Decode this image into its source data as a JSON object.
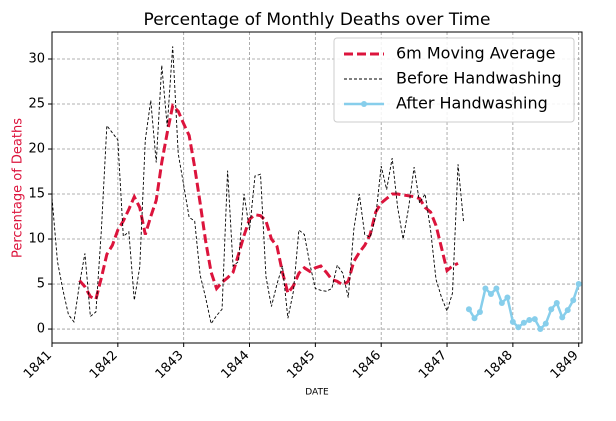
{
  "chart_data": {
    "type": "line",
    "title": "Percentage of Monthly Deaths over Time",
    "xlabel": "DATE",
    "ylabel": "Percentage of Deaths",
    "xlim": [
      1841,
      1849.05
    ],
    "ylim": [
      -1.55,
      33
    ],
    "xticks": [
      1841,
      1842,
      1843,
      1844,
      1845,
      1846,
      1847,
      1848,
      1849
    ],
    "yticks": [
      0,
      5,
      10,
      15,
      20,
      25,
      30
    ],
    "grid": true,
    "legend": "upper right",
    "series": [
      {
        "name": "6m Moving Average",
        "color": "#dc143c",
        "style": "dashed",
        "x": [
          1841,
          1841.083,
          1841.167,
          1841.25,
          1841.333,
          1841.417,
          1841.5,
          1841.583,
          1841.667,
          1841.75,
          1841.833,
          1841.917,
          1842,
          1842.083,
          1842.167,
          1842.25,
          1842.333,
          1842.417,
          1842.5,
          1842.583,
          1842.667,
          1842.75,
          1842.833,
          1842.917,
          1843,
          1843.083,
          1843.167,
          1843.25,
          1843.333,
          1843.417,
          1843.5,
          1843.583,
          1843.667,
          1843.75,
          1843.833,
          1843.917,
          1844,
          1844.083,
          1844.167,
          1844.25,
          1844.333,
          1844.417,
          1844.5,
          1844.583,
          1844.667,
          1844.75,
          1844.833,
          1844.917,
          1845,
          1845.083,
          1845.167,
          1845.25,
          1845.333,
          1845.417,
          1845.5,
          1845.583,
          1845.667,
          1845.75,
          1845.833,
          1845.917,
          1846,
          1846.083,
          1846.167,
          1846.25,
          1846.333,
          1846.417,
          1846.5,
          1846.583,
          1846.667,
          1846.75,
          1846.833,
          1846.917,
          1847,
          1847.083,
          1847.167,
          1847.25
        ],
        "values": [
          null,
          null,
          null,
          null,
          null,
          5.4,
          4.7,
          3.6,
          3.3,
          5.7,
          8.3,
          9.3,
          11,
          12,
          13.3,
          14.7,
          13.5,
          10.5,
          12.5,
          14.3,
          18.5,
          21.8,
          24.8,
          24.2,
          22.8,
          21.5,
          18,
          14,
          9.8,
          6.3,
          4.5,
          5.2,
          5.7,
          6.3,
          8.3,
          10.4,
          12.2,
          12.7,
          12.6,
          12,
          10,
          9.2,
          6.3,
          4,
          4.8,
          6.2,
          6.8,
          6.4,
          6.8,
          7,
          6.3,
          5.5,
          5.3,
          4.9,
          5.3,
          7.5,
          8.5,
          9.3,
          10.5,
          13,
          14,
          14.5,
          15,
          15,
          14.9,
          14.8,
          14.7,
          14.5,
          13.5,
          13,
          11.5,
          9,
          6.5,
          7,
          7.3,
          null
        ]
      },
      {
        "name": "Before Handwashing",
        "color": "#000000",
        "style": "dashed-thin",
        "x": [
          1841,
          1841.083,
          1841.167,
          1841.25,
          1841.333,
          1841.417,
          1841.5,
          1841.583,
          1841.667,
          1841.75,
          1841.833,
          1841.917,
          1842,
          1842.083,
          1842.167,
          1842.25,
          1842.333,
          1842.417,
          1842.5,
          1842.583,
          1842.667,
          1842.75,
          1842.833,
          1842.917,
          1843,
          1843.083,
          1843.167,
          1843.25,
          1843.333,
          1843.417,
          1843.5,
          1843.583,
          1843.667,
          1843.75,
          1843.833,
          1843.917,
          1844,
          1844.083,
          1844.167,
          1844.25,
          1844.333,
          1844.417,
          1844.5,
          1844.583,
          1844.667,
          1844.75,
          1844.833,
          1844.917,
          1845,
          1845.083,
          1845.167,
          1845.25,
          1845.333,
          1845.417,
          1845.5,
          1845.583,
          1845.667,
          1845.75,
          1845.833,
          1845.917,
          1846,
          1846.083,
          1846.167,
          1846.25,
          1846.333,
          1846.417,
          1846.5,
          1846.583,
          1846.667,
          1846.75,
          1846.833,
          1846.917,
          1847,
          1847.083,
          1847.167,
          1847.25
        ],
        "values": [
          14.6,
          7.5,
          4.3,
          1.6,
          0.8,
          5,
          8.4,
          1.4,
          1.9,
          11,
          22.6,
          21.8,
          21,
          10.3,
          10.8,
          3.2,
          6.9,
          21,
          25.4,
          18.5,
          29.3,
          22.5,
          31.4,
          19.5,
          16,
          12.4,
          12,
          6,
          3.5,
          0.6,
          1.5,
          2.2,
          17.6,
          7,
          7.5,
          15,
          11,
          17,
          17.2,
          5.8,
          2.5,
          5,
          7,
          1.2,
          4.2,
          11,
          10.5,
          7.2,
          4.5,
          4.3,
          4.2,
          4.5,
          7.1,
          6.2,
          3.5,
          11,
          15,
          10.5,
          10.2,
          12.5,
          18.1,
          15.5,
          19,
          13.5,
          10,
          13.5,
          18,
          14,
          15,
          11,
          5.5,
          3.5,
          2,
          4,
          18.3,
          12
        ]
      },
      {
        "name": "After Handwashing",
        "color": "#87ceeb",
        "style": "solid-markers",
        "x": [
          1847.333,
          1847.417,
          1847.5,
          1847.583,
          1847.667,
          1847.75,
          1847.833,
          1847.917,
          1848,
          1848.083,
          1848.167,
          1848.25,
          1848.333,
          1848.417,
          1848.5,
          1848.583,
          1848.667,
          1848.75,
          1848.833,
          1848.917,
          1849
        ],
        "values": [
          2.2,
          1.2,
          1.9,
          4.5,
          3.9,
          4.5,
          2.9,
          3.5,
          0.8,
          0.2,
          0.7,
          1,
          1.1,
          0,
          0.6,
          2.2,
          2.9,
          1.3,
          2.1,
          3.2,
          5
        ]
      }
    ]
  }
}
